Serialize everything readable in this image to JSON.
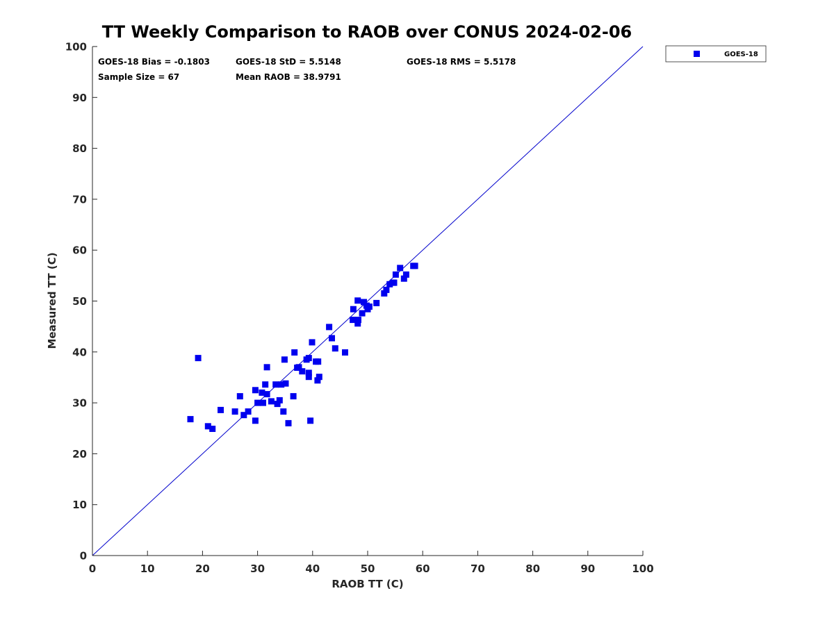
{
  "chart_data": {
    "type": "scatter",
    "title": "TT Weekly Comparison to RAOB over CONUS 2024-02-06",
    "xlabel": "RAOB TT (C)",
    "ylabel": "Measured TT (C)",
    "xlim": [
      0,
      100
    ],
    "ylim": [
      0,
      100
    ],
    "xticks": [
      "0",
      "10",
      "20",
      "30",
      "40",
      "50",
      "60",
      "70",
      "80",
      "90",
      "100"
    ],
    "yticks": [
      "0",
      "10",
      "20",
      "30",
      "40",
      "50",
      "60",
      "70",
      "80",
      "90",
      "100"
    ],
    "grid": false,
    "legend_position": "top-right-outside",
    "reference_line": "one-to-one",
    "marker_color": "#0000ee",
    "line_color": "#0000cc",
    "stats": {
      "bias": "GOES-18 Bias = -0.1803",
      "std": "GOES-18 StD = 5.5148",
      "rms": "GOES-18 RMS = 5.5178",
      "sample": "Sample Size = 67",
      "mean": "Mean RAOB = 38.9791"
    },
    "series": [
      {
        "name": "GOES-18",
        "points": [
          [
            17.8,
            26.8
          ],
          [
            19.2,
            38.8
          ],
          [
            21.0,
            25.4
          ],
          [
            21.8,
            24.9
          ],
          [
            23.3,
            28.6
          ],
          [
            25.9,
            28.3
          ],
          [
            26.8,
            31.3
          ],
          [
            27.5,
            27.6
          ],
          [
            28.3,
            28.3
          ],
          [
            29.6,
            32.5
          ],
          [
            29.6,
            26.5
          ],
          [
            30.0,
            30.0
          ],
          [
            30.8,
            32.0
          ],
          [
            31.0,
            30.0
          ],
          [
            31.4,
            33.6
          ],
          [
            31.7,
            37.0
          ],
          [
            31.7,
            31.7
          ],
          [
            32.5,
            30.3
          ],
          [
            33.3,
            33.6
          ],
          [
            33.6,
            29.8
          ],
          [
            34.0,
            30.5
          ],
          [
            34.3,
            33.6
          ],
          [
            34.7,
            28.3
          ],
          [
            34.9,
            38.5
          ],
          [
            35.1,
            33.8
          ],
          [
            35.6,
            26.0
          ],
          [
            36.5,
            31.3
          ],
          [
            36.7,
            39.9
          ],
          [
            37.5,
            37.0
          ],
          [
            38.1,
            36.2
          ],
          [
            38.9,
            38.5
          ],
          [
            39.3,
            38.8
          ],
          [
            39.3,
            35.9
          ],
          [
            39.3,
            35.1
          ],
          [
            39.6,
            26.5
          ],
          [
            39.9,
            41.9
          ],
          [
            40.6,
            38.1
          ],
          [
            40.9,
            34.4
          ],
          [
            41.0,
            38.1
          ],
          [
            41.2,
            35.1
          ],
          [
            43.0,
            44.9
          ],
          [
            43.5,
            42.7
          ],
          [
            44.1,
            40.7
          ],
          [
            45.9,
            39.9
          ],
          [
            47.3,
            46.3
          ],
          [
            47.4,
            48.4
          ],
          [
            48.2,
            50.1
          ],
          [
            48.2,
            45.6
          ],
          [
            48.3,
            46.3
          ],
          [
            49.0,
            47.6
          ],
          [
            49.3,
            49.8
          ],
          [
            49.8,
            49.1
          ],
          [
            50.0,
            48.4
          ],
          [
            50.3,
            48.9
          ],
          [
            51.6,
            49.6
          ],
          [
            53.0,
            51.5
          ],
          [
            53.4,
            52.2
          ],
          [
            54.0,
            53.3
          ],
          [
            54.6,
            53.6
          ],
          [
            54.8,
            53.6
          ],
          [
            55.1,
            55.2
          ],
          [
            55.9,
            56.5
          ],
          [
            56.6,
            54.4
          ],
          [
            57.0,
            55.2
          ],
          [
            58.3,
            56.9
          ],
          [
            58.6,
            56.9
          ],
          [
            37.2,
            36.9
          ]
        ]
      }
    ]
  }
}
